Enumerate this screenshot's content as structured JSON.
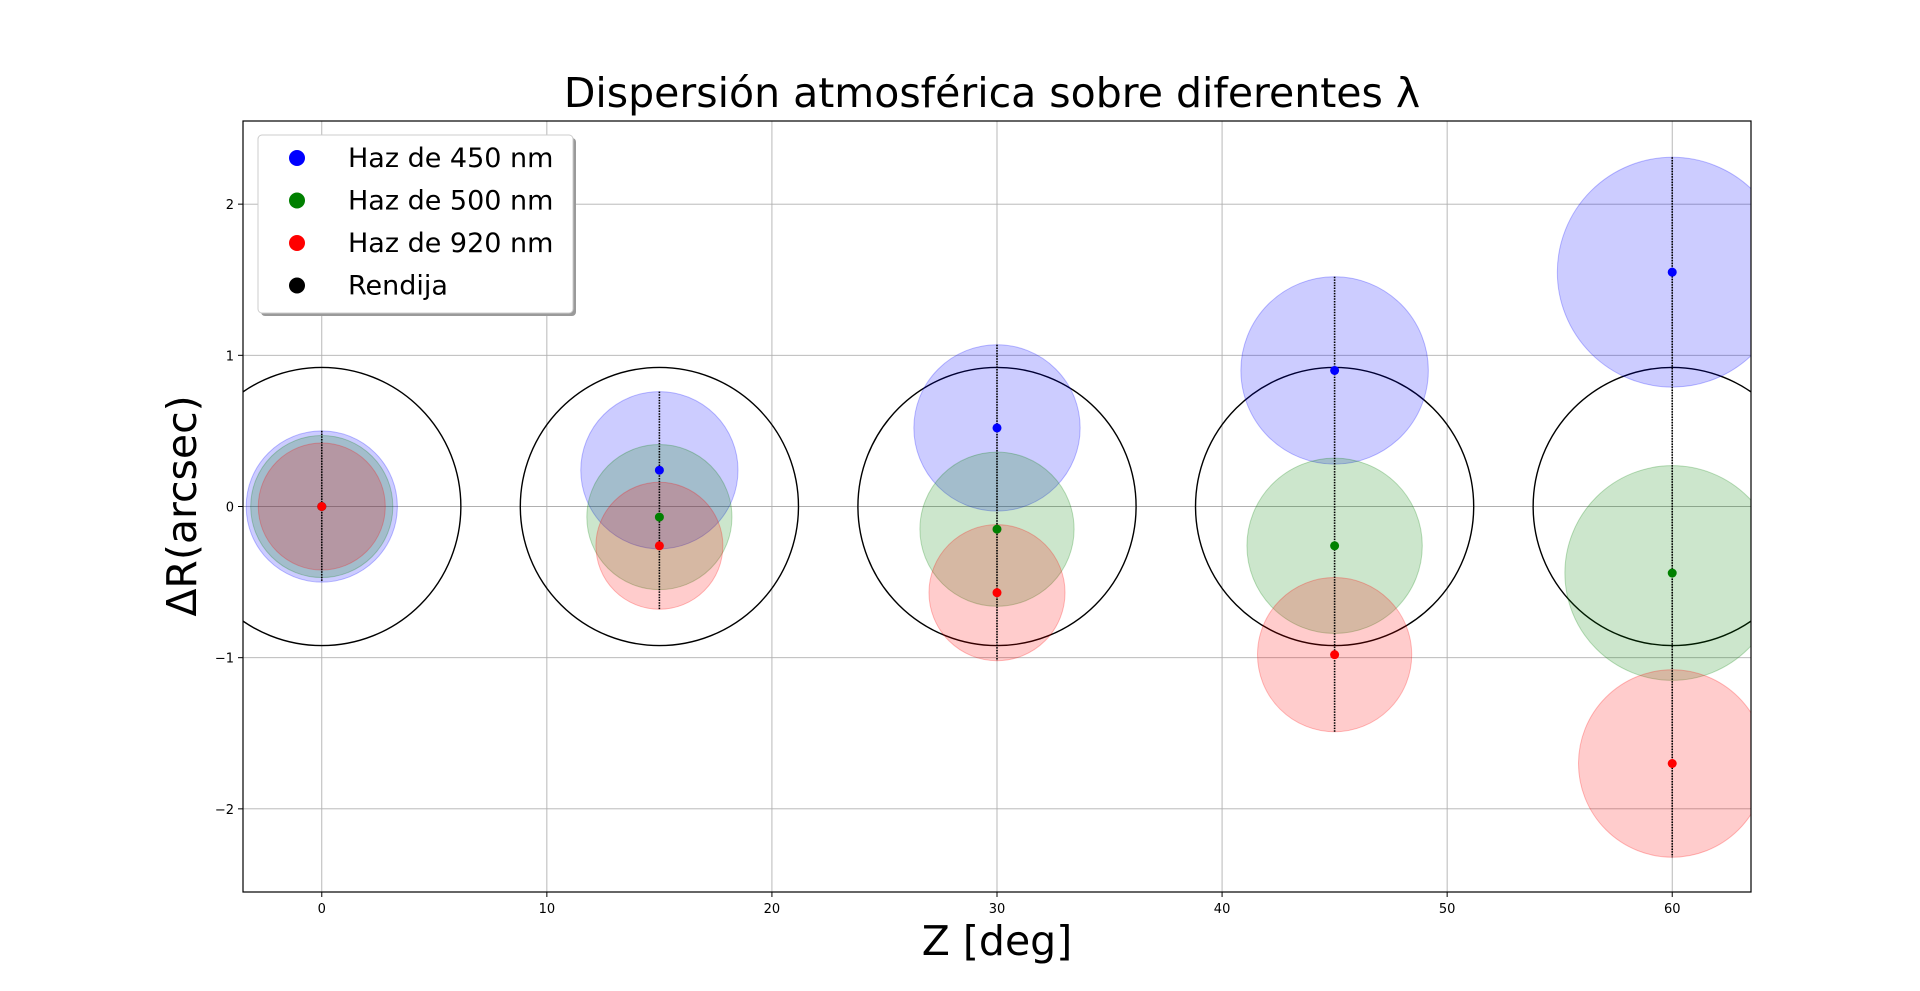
{
  "chart_data": {
    "type": "scatter",
    "title": "Dispersión atmosférica sobre diferentes λ",
    "xlabel": "Z [deg]",
    "ylabel": "ΔR(arcsec)",
    "xlim": [
      -3.5,
      63.5
    ],
    "ylim": [
      -2.55,
      2.55
    ],
    "xticks": [
      0,
      10,
      20,
      30,
      40,
      50,
      60
    ],
    "yticks": [
      -2,
      -1,
      0,
      1,
      2
    ],
    "grid": true,
    "legend_position": "top-left",
    "slit": {
      "name": "Rendija",
      "color": "#000000",
      "radius": 0.92,
      "centers_x": [
        0,
        15,
        30,
        45,
        60
      ],
      "center_y": 0
    },
    "series": [
      {
        "name": "Haz de 450 nm",
        "color": "#0000ff",
        "fill": "#0000ff",
        "x": [
          0,
          15,
          30,
          45,
          60
        ],
        "y": [
          0.0,
          0.24,
          0.52,
          0.9,
          1.55
        ],
        "radius": [
          0.5,
          0.52,
          0.55,
          0.62,
          0.76
        ]
      },
      {
        "name": "Haz de 500 nm",
        "color": "#008000",
        "fill": "#008000",
        "x": [
          0,
          15,
          30,
          45,
          60
        ],
        "y": [
          0.0,
          -0.07,
          -0.15,
          -0.26,
          -0.44
        ],
        "radius": [
          0.47,
          0.48,
          0.51,
          0.58,
          0.71
        ]
      },
      {
        "name": "Haz de 920 nm",
        "color": "#ff0000",
        "fill": "#ff0000",
        "x": [
          0,
          15,
          30,
          45,
          60
        ],
        "y": [
          0.0,
          -0.26,
          -0.57,
          -0.98,
          -1.7
        ],
        "radius": [
          0.42,
          0.42,
          0.45,
          0.51,
          0.62
        ]
      }
    ]
  }
}
